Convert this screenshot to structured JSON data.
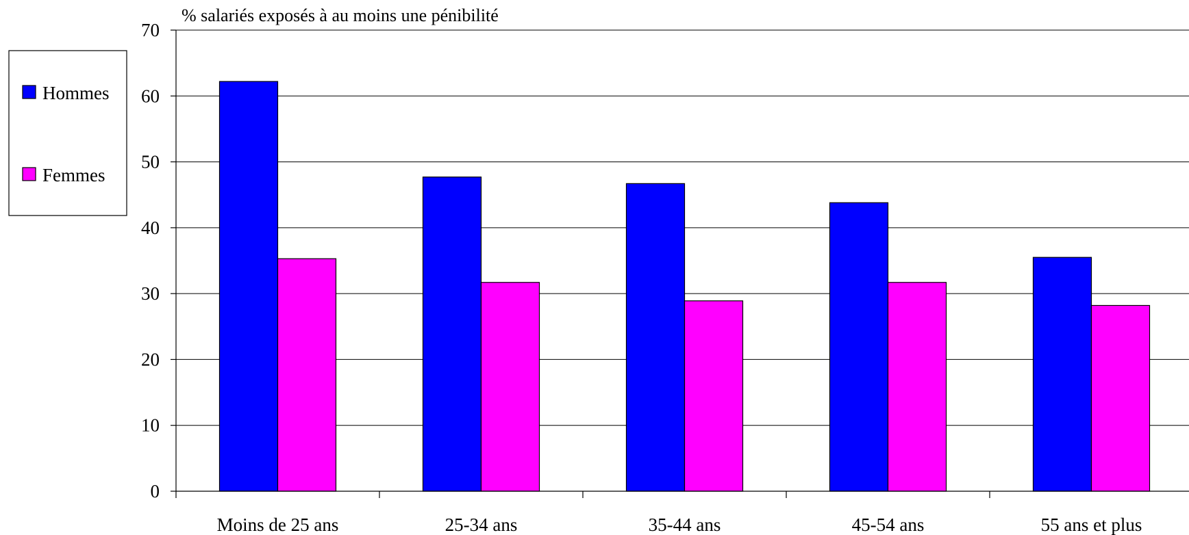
{
  "chart_data": {
    "type": "bar",
    "ylabel": "% salariés exposés à au moins une pénibilité",
    "xlabel": "",
    "categories": [
      "Moins de 25 ans",
      "25-34 ans",
      "35-44 ans",
      "45-54 ans",
      "55 ans et plus"
    ],
    "series": [
      {
        "name": "Hommes",
        "color": "#0000FF",
        "values": [
          62.2,
          47.7,
          46.7,
          43.8,
          35.5
        ]
      },
      {
        "name": "Femmes",
        "color": "#FF00FF",
        "values": [
          35.3,
          31.7,
          28.9,
          31.7,
          28.2
        ]
      }
    ],
    "ylim": [
      0,
      70
    ],
    "yticks": [
      0,
      10,
      20,
      30,
      40,
      50,
      60,
      70
    ],
    "grid": true,
    "legend_position": "left"
  }
}
